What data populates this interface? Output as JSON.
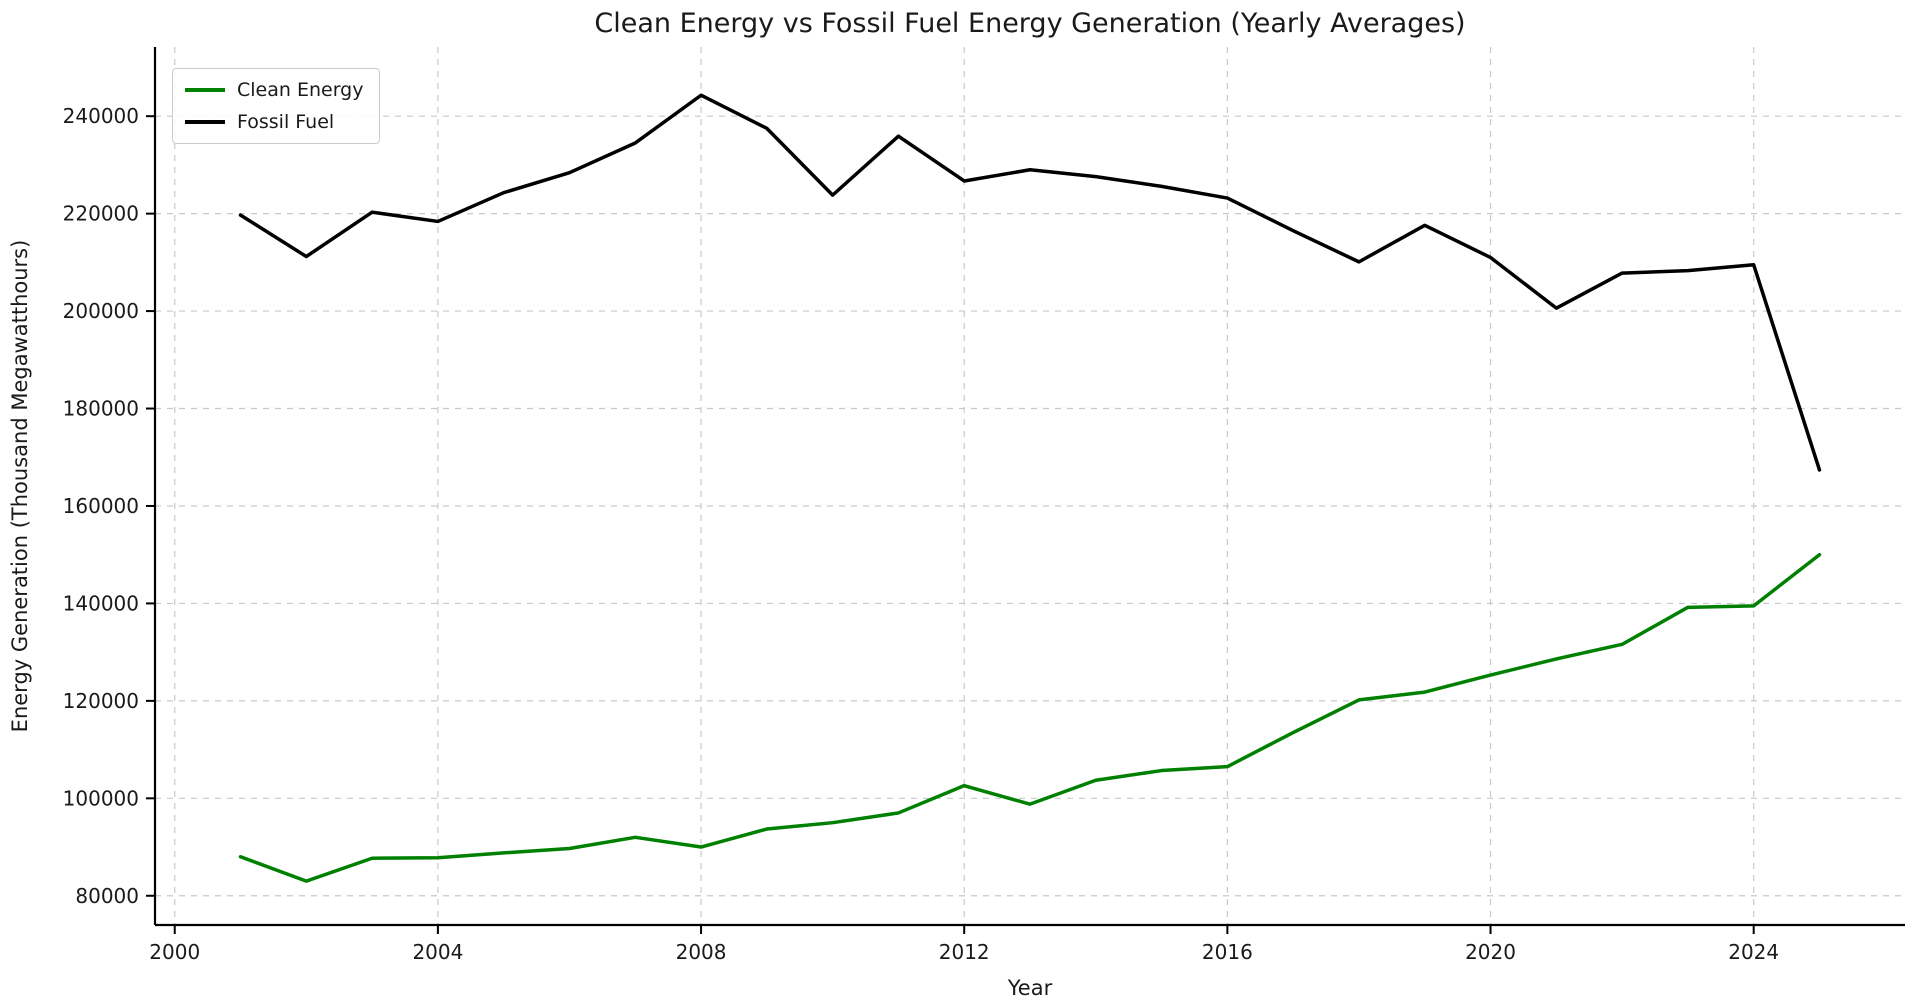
{
  "chart_data": {
    "type": "line",
    "title": "Clean Energy vs Fossil Fuel Energy Generation (Yearly Averages)",
    "xlabel": "Year",
    "ylabel": "Energy Generation (Thousand Megawatthours)",
    "x": [
      2001,
      2002,
      2003,
      2004,
      2005,
      2006,
      2007,
      2008,
      2009,
      2010,
      2011,
      2012,
      2013,
      2014,
      2015,
      2016,
      2017,
      2018,
      2019,
      2020,
      2021,
      2022,
      2023,
      2024,
      2025
    ],
    "series": [
      {
        "name": "Clean Energy",
        "color": "#008000",
        "values": [
          88000,
          83000,
          87700,
          87800,
          88800,
          89700,
          92000,
          90000,
          93700,
          95000,
          97000,
          102600,
          98800,
          103700,
          105700,
          106500,
          113500,
          120200,
          121800,
          125300,
          128600,
          131600,
          139200,
          139500,
          150000
        ]
      },
      {
        "name": "Fossil Fuel",
        "color": "#000000",
        "values": [
          219700,
          211200,
          220300,
          218400,
          224300,
          228400,
          234500,
          244300,
          237500,
          223800,
          235900,
          226700,
          229000,
          227600,
          225600,
          223200,
          216500,
          210100,
          217600,
          211000,
          200600,
          207800,
          208300,
          209500,
          167400
        ]
      }
    ],
    "xlim": [
      1999.7,
      2026.3
    ],
    "ylim": [
      74000,
      254200
    ],
    "xticks": [
      2000,
      2004,
      2008,
      2012,
      2016,
      2020,
      2024
    ],
    "yticks": [
      80000,
      100000,
      120000,
      140000,
      160000,
      180000,
      200000,
      220000,
      240000
    ],
    "grid": true,
    "grid_style": "dashed",
    "legend_position": "upper left",
    "line_width": 3.5,
    "text_color": "#1a1a1a",
    "grid_color": "#c9c9c9",
    "spine_color": "#000000"
  }
}
